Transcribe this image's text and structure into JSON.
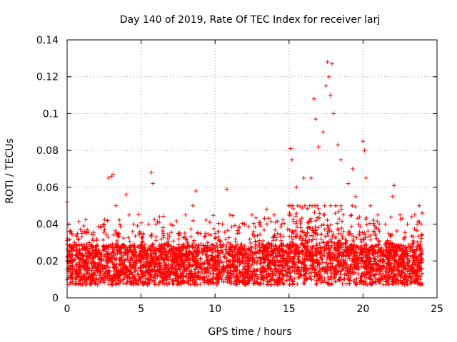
{
  "chart_data": {
    "type": "scatter",
    "title": "Day 140 of 2019, Rate Of TEC Index for receiver larj",
    "xlabel": "GPS time / hours",
    "ylabel": "ROTI / TECUs",
    "xlim": [
      0,
      25
    ],
    "ylim": [
      0,
      0.14
    ],
    "x_ticks": [
      "0",
      "5",
      "10",
      "15",
      "20",
      "25"
    ],
    "y_ticks": [
      "0",
      "0.02",
      "0.04",
      "0.06",
      "0.08",
      "0.1",
      "0.12",
      "0.14"
    ],
    "x_tick_values": [
      0,
      5,
      10,
      15,
      20,
      25
    ],
    "y_tick_values": [
      0,
      0.02,
      0.04,
      0.06,
      0.08,
      0.1,
      0.12,
      0.14
    ],
    "grid": true,
    "marker": "+",
    "series": [
      {
        "name": "ROTI",
        "color": "#ff0000",
        "x": [
          0.0,
          0.1,
          0.2,
          0.5,
          1.0,
          1.5,
          2.0,
          2.5,
          2.8,
          3.0,
          3.1,
          3.3,
          3.5,
          4.0,
          4.2,
          4.5,
          5.0,
          5.5,
          5.7,
          5.8,
          6.0,
          6.5,
          7.0,
          7.5,
          8.0,
          8.5,
          8.7,
          9.0,
          9.5,
          10.0,
          10.5,
          10.8,
          11.0,
          11.5,
          12.0,
          12.5,
          13.0,
          13.5,
          14.0,
          14.5,
          15.0,
          15.1,
          15.2,
          15.5,
          16.0,
          16.5,
          16.7,
          16.8,
          17.0,
          17.3,
          17.5,
          17.6,
          17.7,
          17.8,
          17.9,
          18.0,
          18.3,
          18.5,
          19.0,
          19.3,
          19.5,
          20.0,
          20.1,
          20.2,
          20.5,
          21.0,
          21.5,
          22.0,
          22.1,
          22.5,
          23.0,
          23.5,
          23.8,
          24.0
        ],
        "y": [
          0.052,
          0.04,
          0.02,
          0.03,
          0.035,
          0.03,
          0.032,
          0.04,
          0.065,
          0.066,
          0.067,
          0.05,
          0.035,
          0.056,
          0.045,
          0.04,
          0.035,
          0.04,
          0.068,
          0.062,
          0.04,
          0.035,
          0.04,
          0.035,
          0.045,
          0.05,
          0.058,
          0.035,
          0.03,
          0.035,
          0.04,
          0.059,
          0.045,
          0.035,
          0.04,
          0.045,
          0.04,
          0.048,
          0.045,
          0.04,
          0.05,
          0.081,
          0.075,
          0.06,
          0.065,
          0.065,
          0.108,
          0.097,
          0.082,
          0.09,
          0.115,
          0.128,
          0.12,
          0.11,
          0.127,
          0.1,
          0.083,
          0.075,
          0.062,
          0.07,
          0.055,
          0.085,
          0.08,
          0.065,
          0.05,
          0.045,
          0.04,
          0.055,
          0.061,
          0.045,
          0.04,
          0.045,
          0.05,
          0.046
        ]
      }
    ]
  }
}
